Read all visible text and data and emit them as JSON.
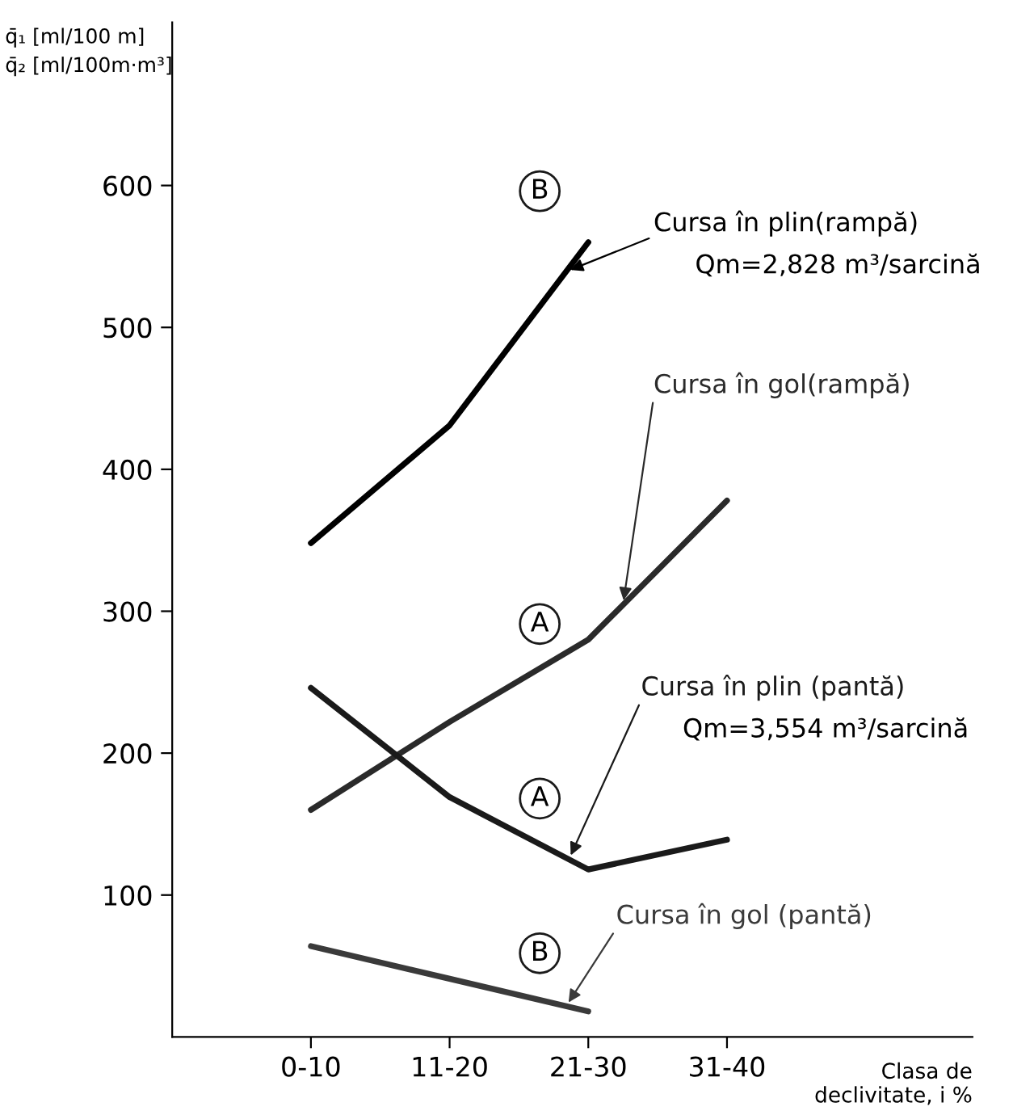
{
  "chart_data": {
    "type": "line",
    "ylabel": "q̄₁ [ml/100 m]\nq̄₂ [ml/100m·m³]",
    "xlabel": "Clasa de\ndeclivitate, i %",
    "categories": [
      "0-10",
      "11-20",
      "21-30",
      "31-40"
    ],
    "ylim": [
      0,
      715
    ],
    "yticks": [
      100,
      200,
      300,
      400,
      500,
      600
    ],
    "grid": false,
    "legend": false,
    "marker": "none",
    "line_style": "solid",
    "series": [
      {
        "name": "Cursa în plin(rampă)",
        "color": "#000000",
        "values": [
          348,
          431,
          560,
          null
        ]
      },
      {
        "name": "Cursa în gol(rampă)",
        "color": "#2a2a2a",
        "values": [
          160,
          222,
          280,
          378
        ]
      },
      {
        "name": "Cursa în plin (pantă)",
        "color": "#1a1a1a",
        "values": [
          246,
          169,
          118,
          139
        ]
      },
      {
        "name": "Cursa în gol (pantă)",
        "color": "#3a3a3a",
        "values": [
          64,
          41,
          18,
          null
        ]
      }
    ],
    "annotations": [
      "Qm=2,828 m³/sarcină",
      "Qm=3,554 m³/sarcină",
      {
        "text": "B",
        "y": 596
      },
      {
        "text": "A",
        "y": 291
      },
      {
        "text": "A",
        "y": 168
      },
      {
        "text": "B",
        "y": 59
      }
    ]
  }
}
